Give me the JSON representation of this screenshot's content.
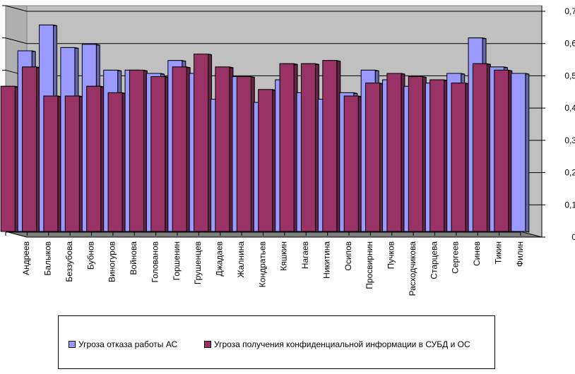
{
  "chart_data": {
    "type": "bar",
    "ylim": [
      0,
      0.7
    ],
    "yticks": [
      "0",
      "0,1",
      "0,2",
      "0,3",
      "0,4",
      "0,5",
      "0,6",
      "0,7"
    ],
    "categories": [
      "Андреев",
      "Балыков",
      "Беззубова",
      "Бубнов",
      "Виногуров",
      "Войнова",
      "Голованов",
      "Горшенин",
      "Грушенцев",
      "Джадаев",
      "Жалнина",
      "Кондратьев",
      "Кяшкин",
      "Нагаев",
      "Никитина",
      "Осипов",
      "Просвирнин",
      "Пучков",
      "Расходчикова",
      "Старцева",
      "Сергеев",
      "Синев",
      "Тикин",
      "Филин"
    ],
    "series": [
      {
        "name": "Угроза отказа работы АС",
        "color": "#9999ff",
        "values": [
          0.56,
          0.64,
          0.57,
          0.58,
          0.5,
          0.5,
          0.49,
          0.53,
          0.49,
          0.41,
          0.48,
          0.4,
          0.47,
          0.43,
          0.41,
          0.43,
          0.5,
          0.47,
          0.45,
          0.46,
          0.49,
          0.6,
          0.51,
          0.49
        ]
      },
      {
        "name": "Угроза получения конфиденциальной информации в СУБД и ОС",
        "color": "#993366",
        "values": [
          0.45,
          0.51,
          0.42,
          0.42,
          0.45,
          0.43,
          0.5,
          0.48,
          0.51,
          0.55,
          0.51,
          0.48,
          0.44,
          0.52,
          0.52,
          0.53,
          0.42,
          0.46,
          0.49,
          0.48,
          0.47,
          0.46,
          0.52,
          0.5
        ]
      }
    ],
    "grid": true,
    "legend": "bottom"
  }
}
